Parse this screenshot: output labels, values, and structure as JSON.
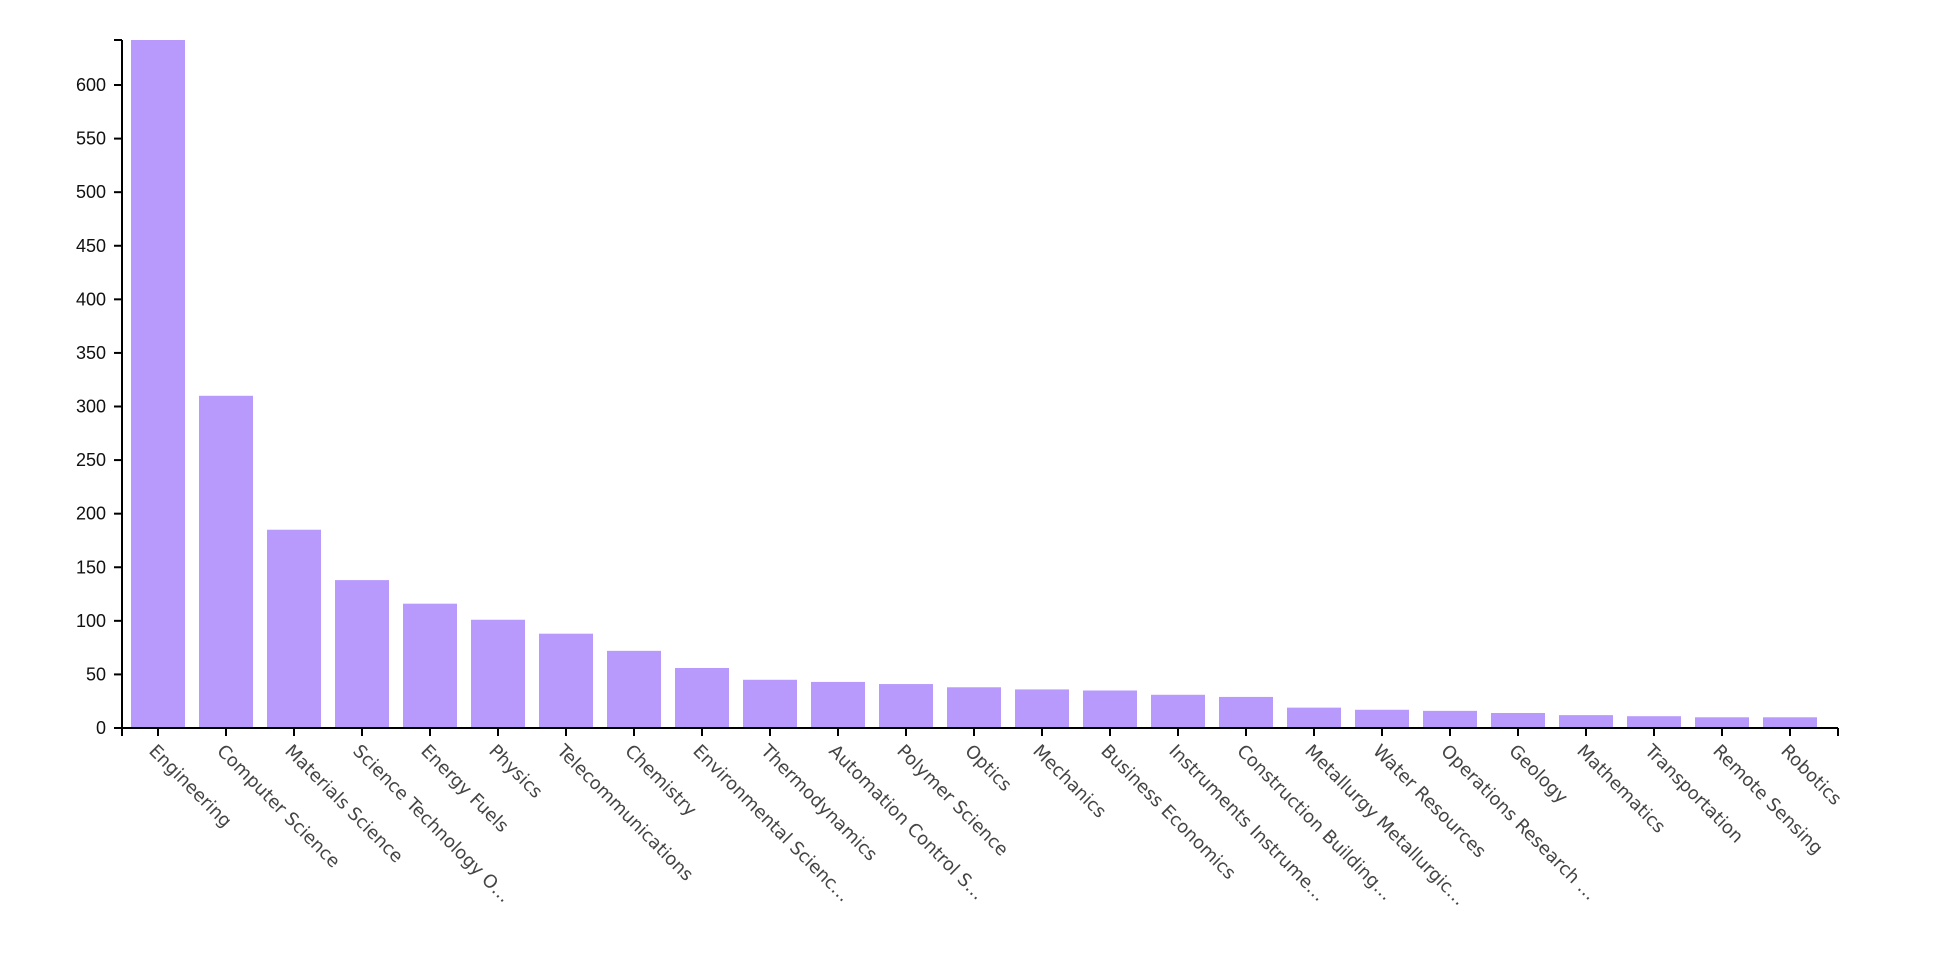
{
  "chart_data": {
    "type": "bar",
    "title": "",
    "xlabel": "",
    "ylabel": "",
    "ylim": [
      0,
      642
    ],
    "yticks": [
      0,
      50,
      100,
      150,
      200,
      250,
      300,
      350,
      400,
      450,
      500,
      550,
      600
    ],
    "bar_color": "#b899fc",
    "grid": false,
    "categories": [
      "Engineering",
      "Computer Science",
      "Materials Science",
      "Science Technology O…",
      "Energy Fuels",
      "Physics",
      "Telecommunications",
      "Chemistry",
      "Environmental Scienc…",
      "Thermodynamics",
      "Automation Control S…",
      "Polymer Science",
      "Optics",
      "Mechanics",
      "Business Economics",
      "Instruments Instrume…",
      "Construction Building…",
      "Metallurgy Metallurgic…",
      "Water Resources",
      "Operations Research …",
      "Geology",
      "Mathematics",
      "Transportation",
      "Remote Sensing",
      "Robotics"
    ],
    "values": [
      642,
      310,
      185,
      138,
      116,
      101,
      88,
      72,
      56,
      45,
      43,
      41,
      38,
      36,
      35,
      31,
      29,
      19,
      17,
      16,
      14,
      12,
      11,
      10,
      10
    ]
  }
}
